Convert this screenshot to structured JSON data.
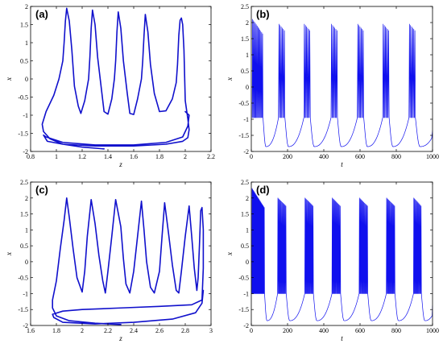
{
  "chart_data": [
    {
      "id": "a",
      "type": "line",
      "panel_label": "(a)",
      "xlabel": "z",
      "ylabel": "x",
      "xlim": [
        0.8,
        2.2
      ],
      "ylim": [
        -2,
        2
      ],
      "xticks": [
        0.8,
        1,
        1.2,
        1.4,
        1.6,
        1.8,
        2,
        2.2
      ],
      "yticks": [
        -2,
        -1.5,
        -1,
        -0.5,
        0,
        0.5,
        1,
        1.5,
        2
      ],
      "color": "#1010cc",
      "series": [
        {
          "x": [
            1.37,
            1.2,
            1.05,
            0.95,
            0.9,
            0.89,
            0.92,
            0.98,
            1.02,
            1.05,
            1.06,
            1.07,
            1.08,
            1.1,
            1.12,
            1.14,
            1.17,
            1.19,
            1.22,
            1.25,
            1.26,
            1.27,
            1.28,
            1.3,
            1.32,
            1.35,
            1.37,
            1.4,
            1.43,
            1.45,
            1.46,
            1.47,
            1.48,
            1.5,
            1.52,
            1.55,
            1.57,
            1.6,
            1.63,
            1.66,
            1.67,
            1.68,
            1.69,
            1.71,
            1.73,
            1.76,
            1.8,
            1.85,
            1.9,
            1.93,
            1.94,
            1.95,
            1.96,
            1.97,
            1.98,
            1.99,
            2.0,
            2.02,
            2.03,
            2.02,
            1.98,
            1.85,
            1.6,
            1.3,
            1.05,
            0.93,
            0.9,
            0.92,
            1.05,
            1.3,
            1.6,
            1.85,
            1.98,
            2.02,
            2.03,
            2.0
          ],
          "y": [
            -1.93,
            -1.88,
            -1.8,
            -1.65,
            -1.45,
            -1.25,
            -0.9,
            -0.45,
            0.0,
            0.5,
            1.0,
            1.6,
            1.95,
            1.6,
            0.8,
            -0.2,
            -0.75,
            -0.95,
            -0.6,
            0.0,
            0.6,
            1.4,
            1.9,
            1.5,
            0.6,
            -0.3,
            -0.9,
            -0.97,
            -0.55,
            0.0,
            0.5,
            1.3,
            1.85,
            1.4,
            0.5,
            -0.4,
            -0.95,
            -0.98,
            -0.55,
            0.0,
            0.5,
            1.2,
            1.78,
            1.3,
            0.4,
            -0.4,
            -0.9,
            -0.88,
            -0.55,
            -0.1,
            0.4,
            1.2,
            1.62,
            1.68,
            1.5,
            0.8,
            -0.6,
            -1.1,
            -1.4,
            -1.62,
            -1.72,
            -1.8,
            -1.85,
            -1.85,
            -1.8,
            -1.72,
            -1.55,
            -1.6,
            -1.75,
            -1.82,
            -1.82,
            -1.75,
            -1.6,
            -1.3,
            -1.0,
            -0.9
          ]
        }
      ]
    },
    {
      "id": "b",
      "type": "line",
      "panel_label": "(b)",
      "xlabel": "t",
      "ylabel": "x",
      "xlim": [
        0,
        1000
      ],
      "ylim": [
        -2,
        2.5
      ],
      "xticks": [
        0,
        200,
        400,
        600,
        800,
        1000
      ],
      "yticks": [
        -2,
        -1.5,
        -1,
        -0.5,
        0,
        0.5,
        1,
        1.5,
        2,
        2.5
      ],
      "color": "#1010ee",
      "bursts": [
        {
          "t0": 5,
          "spikes": 12,
          "dt": 5,
          "peak_start": 2.1,
          "peak_end": 1.65
        },
        {
          "t0": 150,
          "spikes": 6,
          "dt": 6,
          "peak_start": 1.95,
          "peak_end": 1.75
        },
        {
          "t0": 290,
          "spikes": 6,
          "dt": 6,
          "peak_start": 1.95,
          "peak_end": 1.75
        },
        {
          "t0": 440,
          "spikes": 6,
          "dt": 6,
          "peak_start": 1.95,
          "peak_end": 1.75
        },
        {
          "t0": 585,
          "spikes": 6,
          "dt": 6,
          "peak_start": 1.95,
          "peak_end": 1.75
        },
        {
          "t0": 725,
          "spikes": 6,
          "dt": 6,
          "peak_start": 1.95,
          "peak_end": 1.75
        },
        {
          "t0": 870,
          "spikes": 6,
          "dt": 6,
          "peak_start": 1.95,
          "peak_end": 1.75
        }
      ],
      "trough": -1.85,
      "plateau": -0.95
    },
    {
      "id": "c",
      "type": "line",
      "panel_label": "(c)",
      "xlabel": "z",
      "ylabel": "x",
      "xlim": [
        1.6,
        3.0
      ],
      "ylim": [
        -2,
        2.5
      ],
      "xticks": [
        1.6,
        1.8,
        2,
        2.2,
        2.4,
        2.6,
        2.8,
        3
      ],
      "yticks": [
        -2,
        -1.5,
        -1,
        -0.5,
        0,
        0.5,
        1,
        1.5,
        2,
        2.5
      ],
      "color": "#1010cc",
      "series": [
        {
          "x": [
            2.3,
            2.1,
            1.9,
            1.8,
            1.77,
            1.77,
            1.8,
            1.83,
            1.86,
            1.88,
            1.9,
            1.93,
            1.96,
            2.0,
            2.02,
            2.04,
            2.07,
            2.1,
            2.13,
            2.16,
            2.18,
            2.2,
            2.23,
            2.26,
            2.3,
            2.32,
            2.34,
            2.37,
            2.4,
            2.43,
            2.46,
            2.48,
            2.5,
            2.53,
            2.56,
            2.6,
            2.62,
            2.64,
            2.67,
            2.7,
            2.73,
            2.75,
            2.77,
            2.8,
            2.83,
            2.85,
            2.87,
            2.89,
            2.9,
            2.91,
            2.92,
            2.93,
            2.94,
            2.94,
            2.93,
            2.85,
            2.6,
            2.3,
            2.0,
            1.85,
            1.77,
            1.78,
            1.85,
            2.1,
            2.4,
            2.7,
            2.88,
            2.93,
            2.94
          ],
          "y": [
            -1.97,
            -1.93,
            -1.85,
            -1.7,
            -1.45,
            -1.2,
            -0.6,
            0.4,
            1.3,
            2.0,
            1.4,
            0.4,
            -0.5,
            -0.95,
            -0.3,
            0.8,
            1.95,
            1.2,
            0.2,
            -0.6,
            -0.98,
            -0.3,
            0.8,
            1.95,
            1.1,
            0.1,
            -0.7,
            -0.98,
            -0.3,
            0.8,
            1.9,
            1.0,
            0.0,
            -0.8,
            -0.98,
            -0.3,
            0.8,
            1.85,
            0.9,
            -0.1,
            -0.9,
            -0.98,
            -0.3,
            0.8,
            1.75,
            0.8,
            -0.2,
            -0.9,
            -0.5,
            0.5,
            1.6,
            1.7,
            1.0,
            -0.2,
            -1.2,
            -1.35,
            -1.4,
            -1.45,
            -1.5,
            -1.55,
            -1.65,
            -1.75,
            -1.9,
            -1.95,
            -1.9,
            -1.8,
            -1.6,
            -1.3,
            -0.9
          ]
        }
      ]
    },
    {
      "id": "d",
      "type": "line",
      "panel_label": "(d)",
      "xlabel": "t",
      "ylabel": "x",
      "xlim": [
        0,
        1000
      ],
      "ylim": [
        -2,
        2.5
      ],
      "xticks": [
        0,
        200,
        400,
        600,
        800,
        1000
      ],
      "yticks": [
        -2,
        -1.5,
        -1,
        -0.5,
        0,
        0.5,
        1,
        1.5,
        2,
        2.5
      ],
      "color": "#1010ee",
      "bursts": [
        {
          "t0": 3,
          "spikes": 22,
          "dt": 3.2,
          "peak_start": 2.3,
          "peak_end": 1.7
        },
        {
          "t0": 145,
          "spikes": 12,
          "dt": 4,
          "peak_start": 2.0,
          "peak_end": 1.75
        },
        {
          "t0": 295,
          "spikes": 12,
          "dt": 4,
          "peak_start": 2.0,
          "peak_end": 1.75
        },
        {
          "t0": 445,
          "spikes": 12,
          "dt": 4,
          "peak_start": 2.0,
          "peak_end": 1.75
        },
        {
          "t0": 595,
          "spikes": 12,
          "dt": 4,
          "peak_start": 2.0,
          "peak_end": 1.75
        },
        {
          "t0": 745,
          "spikes": 12,
          "dt": 4,
          "peak_start": 2.0,
          "peak_end": 1.75
        },
        {
          "t0": 895,
          "spikes": 11,
          "dt": 4,
          "peak_start": 2.0,
          "peak_end": 1.75
        }
      ],
      "trough": -1.85,
      "plateau": -1.0
    }
  ]
}
